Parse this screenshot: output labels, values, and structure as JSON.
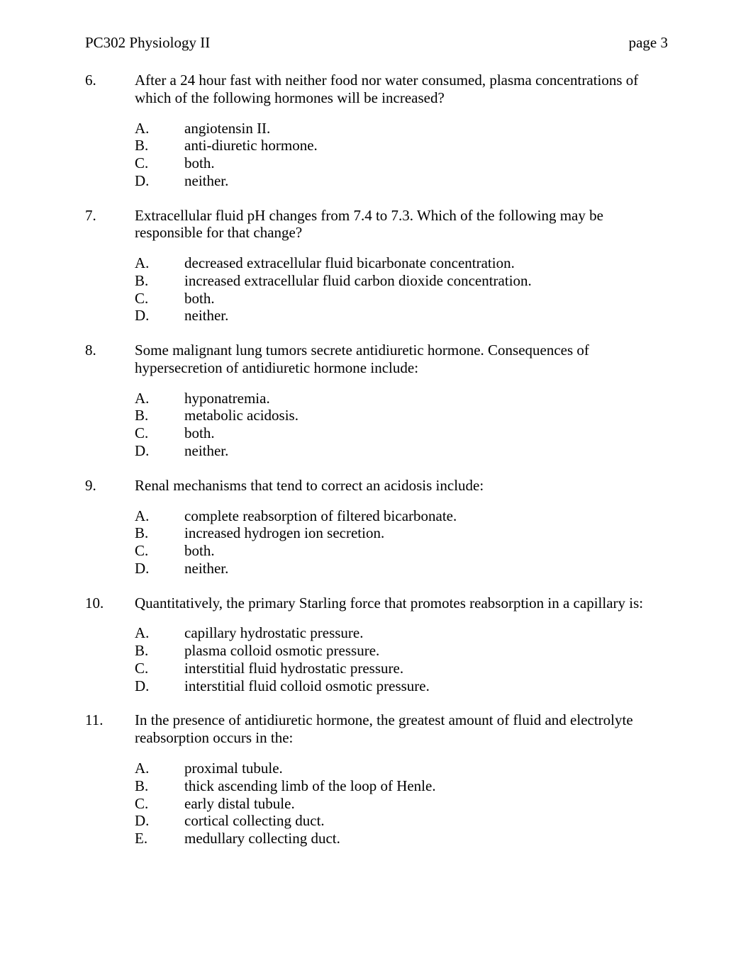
{
  "header": {
    "course": "PC302 Physiology II",
    "page_label": "page 3"
  },
  "questions": [
    {
      "number": "6.",
      "stem": "After a 24 hour fast with neither food nor water consumed, plasma concentrations of which of the following hormones will be increased?",
      "options": [
        {
          "letter": "A.",
          "text": "angiotensin II."
        },
        {
          "letter": "B.",
          "text": "anti-diuretic hormone."
        },
        {
          "letter": "C.",
          "text": "both."
        },
        {
          "letter": "D.",
          "text": "neither."
        }
      ]
    },
    {
      "number": "7.",
      "stem": "Extracellular fluid pH changes from 7.4 to 7.3. Which of the following may be responsible for that change?",
      "options": [
        {
          "letter": "A.",
          "text": "decreased extracellular fluid bicarbonate concentration."
        },
        {
          "letter": "B.",
          "text": "increased extracellular fluid carbon dioxide concentration."
        },
        {
          "letter": "C.",
          "text": "both."
        },
        {
          "letter": "D.",
          "text": "neither."
        }
      ]
    },
    {
      "number": "8.",
      "stem": "Some malignant lung tumors secrete antidiuretic hormone. Consequences of hypersecretion of antidiuretic hormone include:",
      "options": [
        {
          "letter": "A.",
          "text": "hyponatremia."
        },
        {
          "letter": "B.",
          "text": "metabolic acidosis."
        },
        {
          "letter": "C.",
          "text": "both."
        },
        {
          "letter": "D.",
          "text": "neither."
        }
      ]
    },
    {
      "number": "9.",
      "stem": "Renal mechanisms that tend to correct an acidosis include:",
      "options": [
        {
          "letter": "A.",
          "text": "complete reabsorption of filtered bicarbonate."
        },
        {
          "letter": "B.",
          "text": "increased hydrogen ion secretion."
        },
        {
          "letter": "C.",
          "text": "both."
        },
        {
          "letter": "D.",
          "text": "neither."
        }
      ]
    },
    {
      "number": "10.",
      "stem": "Quantitatively, the primary Starling force that promotes reabsorption in a capillary is:",
      "options": [
        {
          "letter": "A.",
          "text": "capillary hydrostatic pressure."
        },
        {
          "letter": "B.",
          "text": "plasma colloid osmotic pressure."
        },
        {
          "letter": "C.",
          "text": "interstitial fluid hydrostatic pressure."
        },
        {
          "letter": "D.",
          "text": "interstitial fluid colloid osmotic pressure."
        }
      ]
    },
    {
      "number": "11.",
      "stem": "In the presence of antidiuretic hormone, the greatest amount of fluid and electrolyte reabsorption occurs in the:",
      "options": [
        {
          "letter": "A.",
          "text": "proximal tubule."
        },
        {
          "letter": "B.",
          "text": "thick ascending limb of the loop of Henle."
        },
        {
          "letter": "C.",
          "text": "early distal tubule."
        },
        {
          "letter": "D.",
          "text": "cortical collecting duct."
        },
        {
          "letter": "E.",
          "text": "medullary collecting duct."
        }
      ]
    }
  ]
}
